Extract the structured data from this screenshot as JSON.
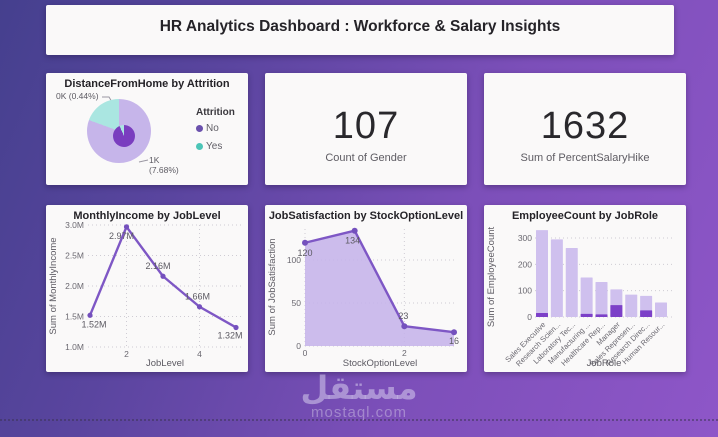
{
  "header": {
    "title": "HR Analytics Dashboard : Workforce & Salary Insights"
  },
  "kpis": [
    {
      "value": "107",
      "label": "Count of Gender"
    },
    {
      "value": "1632",
      "label": "Sum of PercentSalaryHike"
    }
  ],
  "watermark": {
    "brand": "مستقل",
    "domain": "mostaql.com"
  },
  "colors": {
    "accent_purple": "#7e57c5",
    "marker_purple": "#7450bd",
    "bar_light": "#cfc0ee",
    "bar_dark": "#7c40c8",
    "area_fill": "#c5b3e9",
    "pie_light": "#c6b5ea",
    "pie_teal": "#aae6e1",
    "pie_inner": "#7a3dbf",
    "legend_no": "#6b51ad",
    "legend_yes": "#4cc5b7"
  },
  "chart_data": [
    {
      "type": "pie",
      "title": "DistanceFromHome by Attrition",
      "legend_title": "Attrition",
      "legend": [
        {
          "label": "No",
          "color": "#6b51ad"
        },
        {
          "label": "Yes",
          "color": "#4cc5b7"
        }
      ],
      "slices": [
        {
          "name": "No",
          "color": "#c6b5ea",
          "start_deg": 0,
          "end_deg": 290
        },
        {
          "name": "Yes",
          "color": "#aae6e1",
          "start_deg": 290,
          "end_deg": 360
        }
      ],
      "inner_circle": {
        "color": "#7a3dbf",
        "accent_color": "#aae6e1",
        "accent_start_deg": 336,
        "accent_end_deg": 360
      },
      "callouts": [
        {
          "lines": [
            "0K (0.44%)"
          ]
        },
        {
          "lines": [
            "1K",
            "(7.68%)"
          ]
        }
      ]
    },
    {
      "type": "line",
      "title": "MonthlyIncome by JobLevel",
      "xlabel": "JobLevel",
      "ylabel": "Sum of MonthlyIncome",
      "x": [
        1,
        2,
        3,
        4,
        5
      ],
      "values": [
        1.52,
        2.97,
        2.16,
        1.66,
        1.32
      ],
      "value_unit": "M",
      "data_labels": [
        "1.52M",
        "2.97M",
        "2.16M",
        "1.66M",
        "1.32M"
      ],
      "y_ticks": [
        {
          "v": 1.0,
          "label": "1.0M"
        },
        {
          "v": 1.5,
          "label": "1.5M"
        },
        {
          "v": 2.0,
          "label": "2.0M"
        },
        {
          "v": 2.5,
          "label": "2.5M"
        },
        {
          "v": 3.0,
          "label": "3.0M"
        }
      ],
      "x_ticks": [
        2,
        4
      ],
      "ylim": [
        1.0,
        3.0
      ],
      "grid": true,
      "legend_position": "none"
    },
    {
      "type": "area",
      "title": "JobSatisfaction by StockOptionLevel",
      "xlabel": "StockOptionLevel",
      "ylabel": "Sum of JobSatisfaction",
      "x": [
        0,
        1,
        2,
        3
      ],
      "values": [
        120,
        134,
        23,
        16
      ],
      "data_labels": [
        "120",
        "134",
        "23",
        "16"
      ],
      "y_ticks": [
        {
          "v": 0,
          "label": "0"
        },
        {
          "v": 50,
          "label": "50"
        },
        {
          "v": 100,
          "label": "100"
        }
      ],
      "x_ticks": [
        0,
        2
      ],
      "ylim": [
        0,
        136
      ],
      "grid": true,
      "legend_position": "none"
    },
    {
      "type": "bar",
      "title": "EmployeeCount by JobRole",
      "xlabel": "JobRole",
      "ylabel": "Sum of EmployeeCount",
      "categories": [
        "Sales Executive",
        "Research Scien...",
        "Laboratory Tec...",
        "Manufacturing ...",
        "Healthcare Rep...",
        "Manager",
        "Sales Represen...",
        "Research Direc...",
        "Human Resour..."
      ],
      "series": [
        {
          "name": "total",
          "values": [
            330,
            295,
            262,
            150,
            133,
            105,
            85,
            80,
            55
          ],
          "color": "#cfc0ee"
        },
        {
          "name": "highlighted",
          "values": [
            15,
            0,
            0,
            12,
            10,
            45,
            0,
            25,
            0
          ],
          "color": "#7c40c8"
        }
      ],
      "y_ticks": [
        {
          "v": 0,
          "label": "0"
        },
        {
          "v": 100,
          "label": "100"
        },
        {
          "v": 200,
          "label": "200"
        },
        {
          "v": 300,
          "label": "300"
        }
      ],
      "ylim": [
        0,
        340
      ],
      "grid": true,
      "legend_position": "none"
    }
  ]
}
